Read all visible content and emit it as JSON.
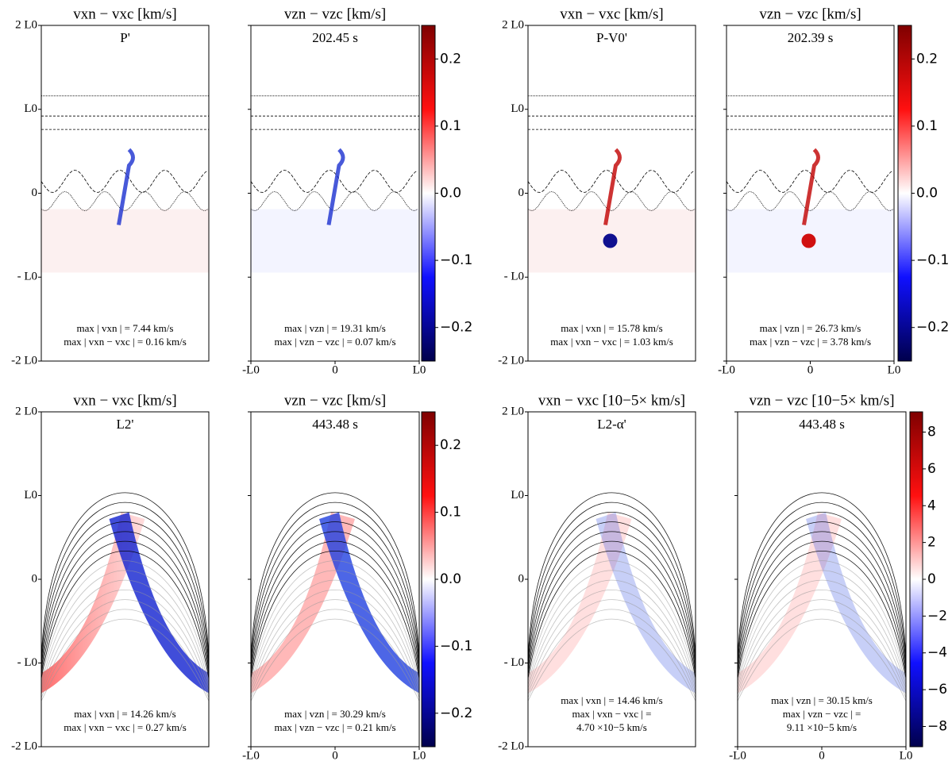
{
  "figure": {
    "panel_ylim": [
      -2,
      2
    ],
    "panel_xlim": [
      -1,
      1
    ],
    "y_ticks": [
      {
        "value": 2,
        "label": "2 L0"
      },
      {
        "value": 1,
        "label": "L0"
      },
      0,
      {
        "value": -1,
        "label": "- L0"
      },
      {
        "value": -2,
        "label": "-2 L0"
      }
    ],
    "x_ticks": [
      {
        "value": -1,
        "label": "-L0"
      },
      0,
      {
        "value": 1,
        "label": "L0"
      }
    ],
    "rows": [
      {
        "panels": [
          {
            "title": "vxn − vxc [km/s]",
            "label": "P'",
            "notes": [
              "max | vxn | = 7.44 km/s",
              "max | vxn − vxc | = 0.16  km/s"
            ]
          },
          {
            "title": "vzn − vzc [km/s]",
            "label": "202.45 s",
            "notes": [
              "max | vzn | = 19.31  km/s",
              "max | vzn − vzc | = 0.07  km/s"
            ]
          },
          {
            "title": "vxn − vxc [km/s]",
            "label": "P-V0'",
            "notes": [
              "max | vxn | = 15.78 km/s",
              "max | vxn − vxc | = 1.03  km/s"
            ]
          },
          {
            "title": "vzn − vzc [km/s]",
            "label": "202.39 s",
            "notes": [
              "max | vzn | = 26.73  km/s",
              "max | vzn − vzc | = 3.78  km/s"
            ]
          }
        ],
        "colorbars": [
          {
            "lim": [
              -0.25,
              0.25
            ],
            "ticks": [
              0.2,
              0.1,
              {
                "value": 0,
                "label": "0.0"
              },
              {
                "value": -0.1,
                "label": "−0.1"
              },
              {
                "value": -0.2,
                "label": "−0.2"
              }
            ]
          },
          {
            "lim": [
              -0.25,
              0.25
            ],
            "ticks": [
              0.2,
              0.1,
              {
                "value": 0,
                "label": "0.0"
              },
              {
                "value": -0.1,
                "label": "−0.1"
              },
              {
                "value": -0.2,
                "label": "−0.2"
              }
            ]
          }
        ]
      },
      {
        "panels": [
          {
            "title": "vxn − vxc [km/s]",
            "label": "L2'",
            "notes": [
              "max | vxn | = 14.26 km/s",
              "max | vxn − vxc | = 0.27  km/s"
            ]
          },
          {
            "title": "vzn − vzc [km/s]",
            "label": "443.48 s",
            "notes": [
              "max | vzn | = 30.29  km/s",
              "max | vzn − vzc | = 0.21  km/s"
            ]
          },
          {
            "title": "vxn − vxc [10−5× km/s]",
            "label": "L2-α'",
            "notes": [
              "max | vxn | = 14.46 km/s",
              "max | vxn − vxc | =",
              "4.70 ×10−5 km/s"
            ]
          },
          {
            "title": "vzn − vzc [10−5× km/s]",
            "label": "443.48 s",
            "notes": [
              "max | vzn | = 30.15  km/s",
              "max | vzn − vzc | =",
              "9.11 ×10−5 km/s"
            ]
          }
        ],
        "colorbars": [
          {
            "lim": [
              -0.25,
              0.25
            ],
            "ticks": [
              0.2,
              0.1,
              {
                "value": 0,
                "label": "0.0"
              },
              {
                "value": -0.1,
                "label": "−0.1"
              },
              {
                "value": -0.2,
                "label": "−0.2"
              }
            ]
          },
          {
            "lim": [
              -9.1,
              9.1
            ],
            "ticks": [
              8,
              6,
              4,
              2,
              0,
              {
                "value": -2,
                "label": "−2"
              },
              {
                "value": -4,
                "label": "−4"
              },
              {
                "value": -6,
                "label": "−6"
              },
              {
                "value": -8,
                "label": "−8"
              }
            ]
          }
        ]
      }
    ]
  }
}
